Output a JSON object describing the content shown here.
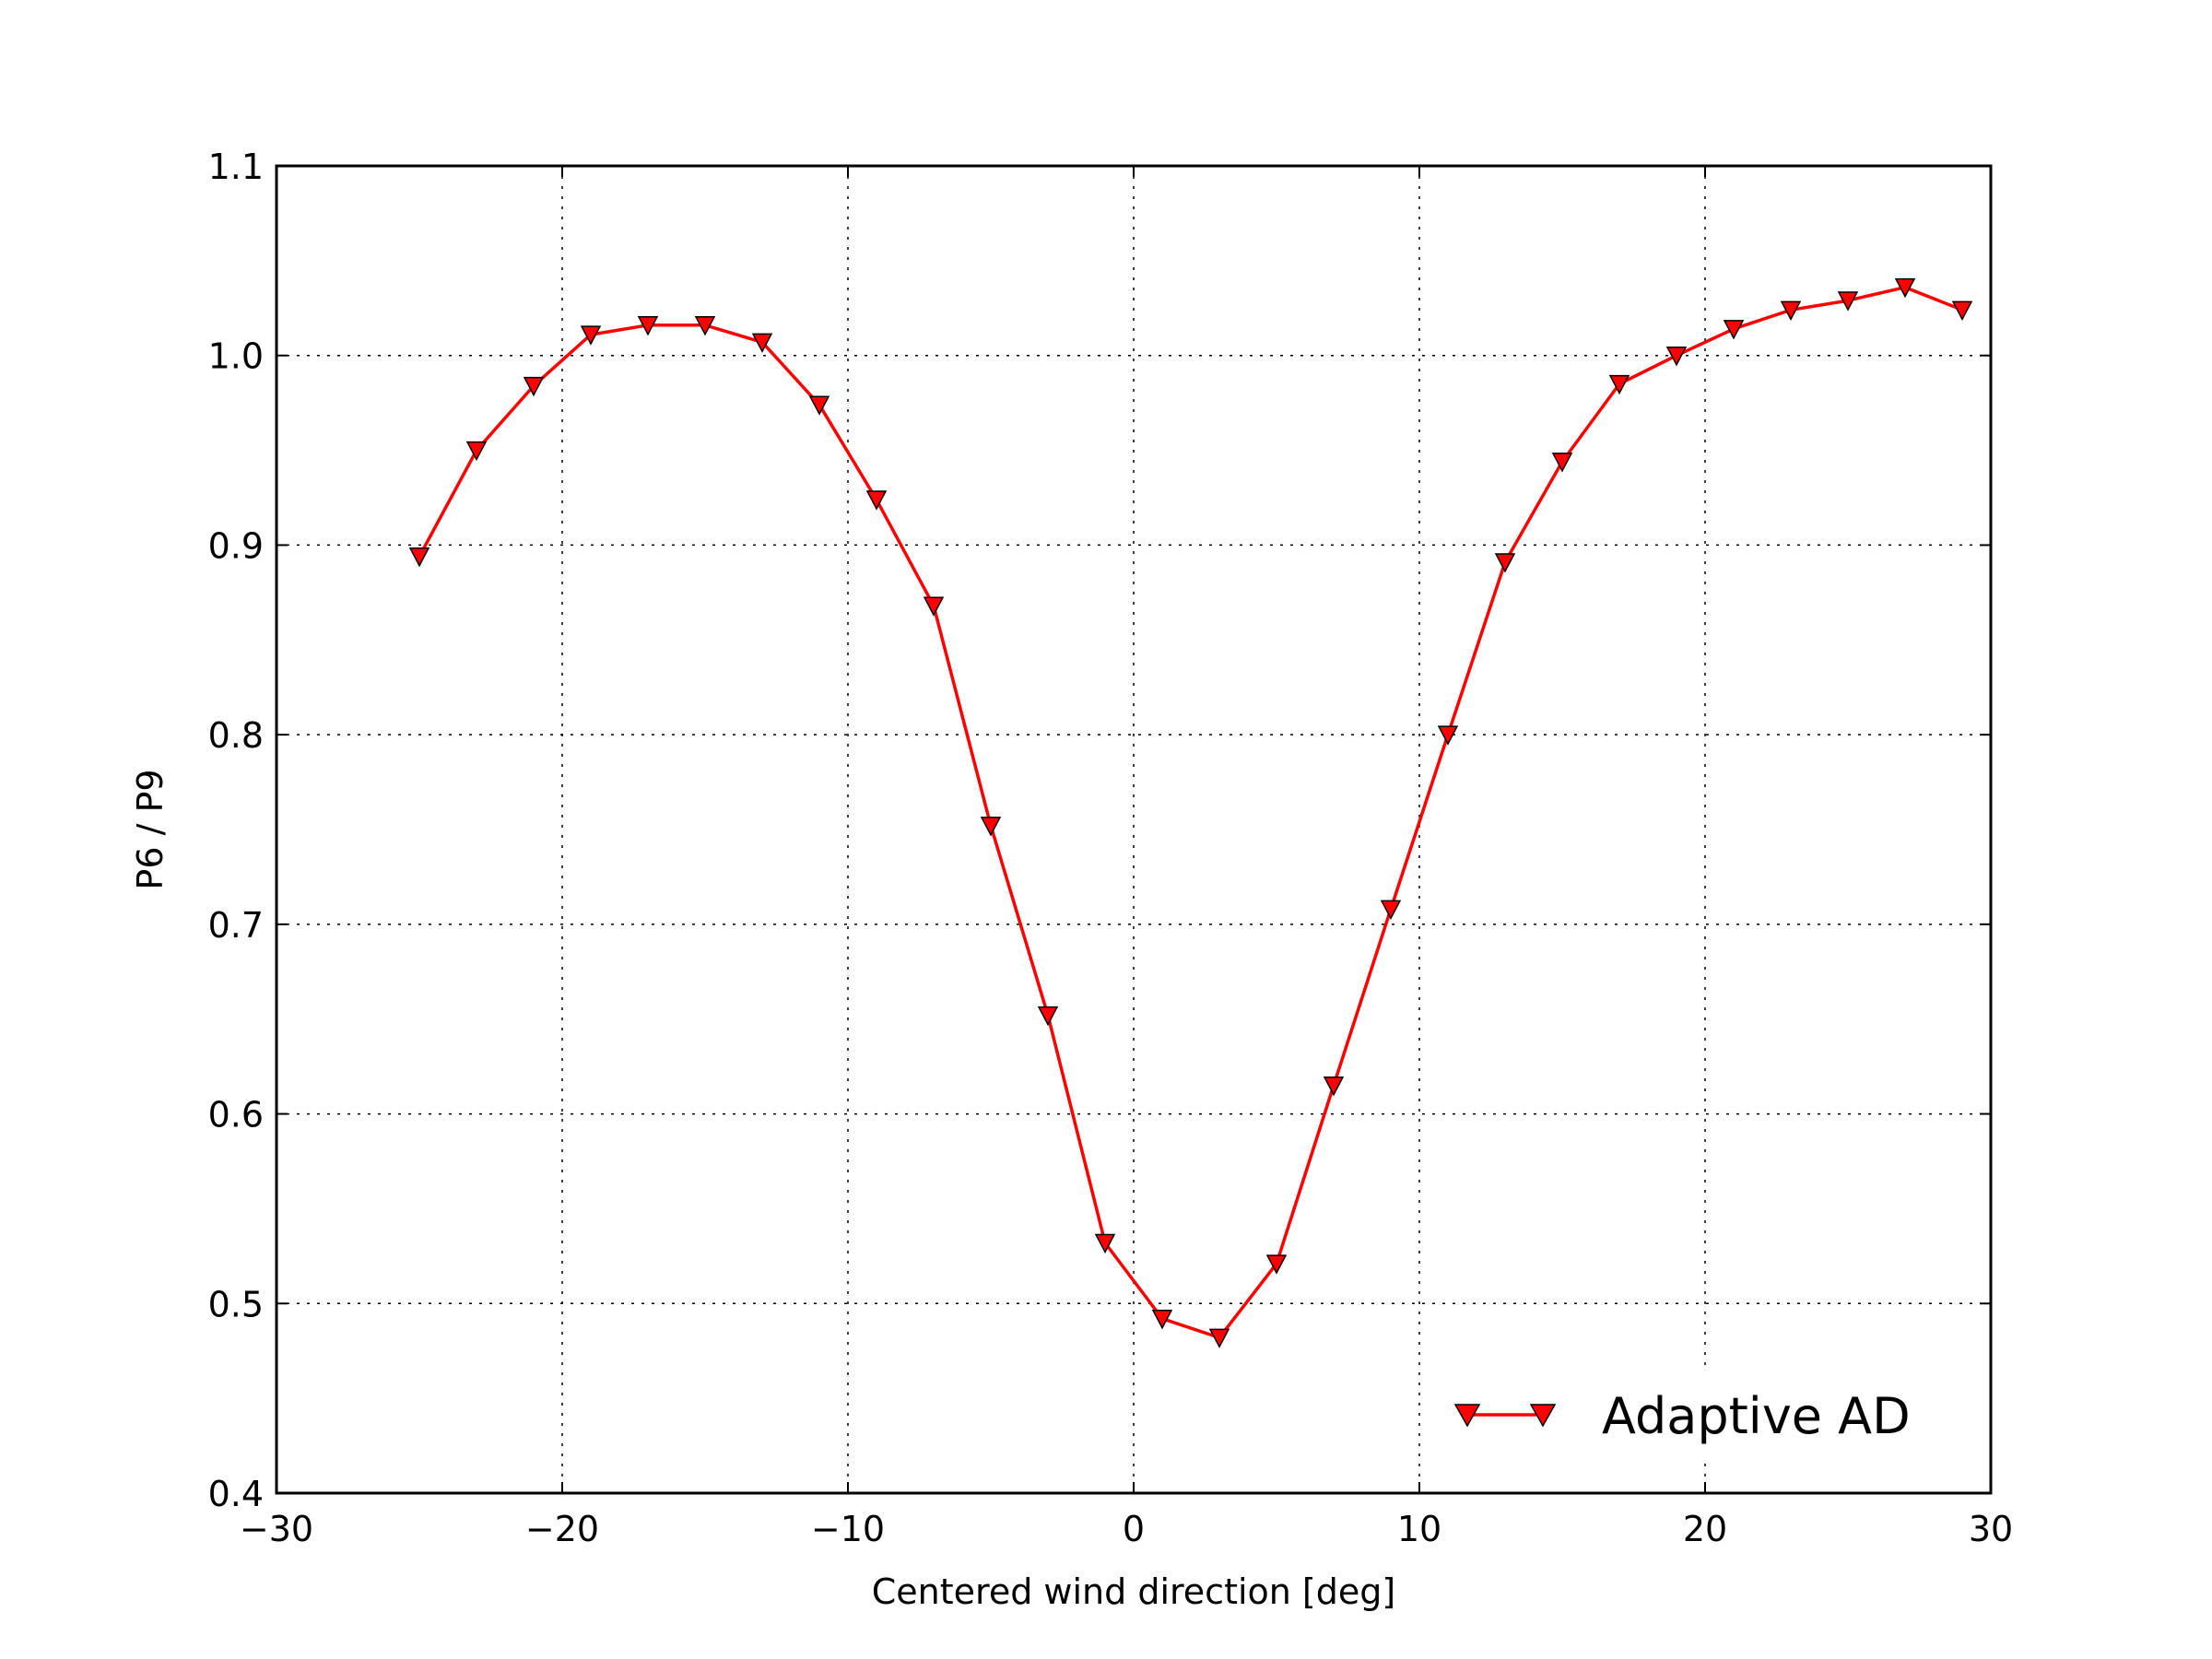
{
  "chart_data": {
    "type": "line",
    "title": "",
    "xlabel": "Centered wind direction [deg]",
    "ylabel": "P6 / P9",
    "xlim": [
      -30,
      30
    ],
    "ylim": [
      0.4,
      1.1
    ],
    "xticks": [
      -30,
      -20,
      -10,
      0,
      10,
      20,
      30
    ],
    "xtick_labels": [
      "−30",
      "−20",
      "−10",
      "0",
      "10",
      "20",
      "30"
    ],
    "yticks": [
      0.4,
      0.5,
      0.6,
      0.7,
      0.8,
      0.9,
      1.0,
      1.1
    ],
    "ytick_labels": [
      "0.4",
      "0.5",
      "0.6",
      "0.7",
      "0.8",
      "0.9",
      "1.0",
      "1.1"
    ],
    "grid": true,
    "legend_position": "lower-right",
    "series": [
      {
        "name": "Adaptive AD",
        "color": "#ff0000",
        "marker": "triangle-down",
        "x": [
          -25,
          -23,
          -21,
          -19,
          -17,
          -15,
          -13,
          -11,
          -9,
          -7,
          -5,
          -3,
          -1,
          1,
          3,
          5,
          7,
          9,
          11,
          13,
          15,
          17,
          19,
          21,
          23,
          25,
          27,
          29
        ],
        "y": [
          0.894,
          0.95,
          0.984,
          1.011,
          1.016,
          1.016,
          1.007,
          0.974,
          0.924,
          0.868,
          0.752,
          0.652,
          0.532,
          0.492,
          0.482,
          0.521,
          0.615,
          0.708,
          0.8,
          0.891,
          0.944,
          0.985,
          1.0,
          1.014,
          1.024,
          1.029,
          1.036,
          1.024
        ]
      }
    ]
  }
}
